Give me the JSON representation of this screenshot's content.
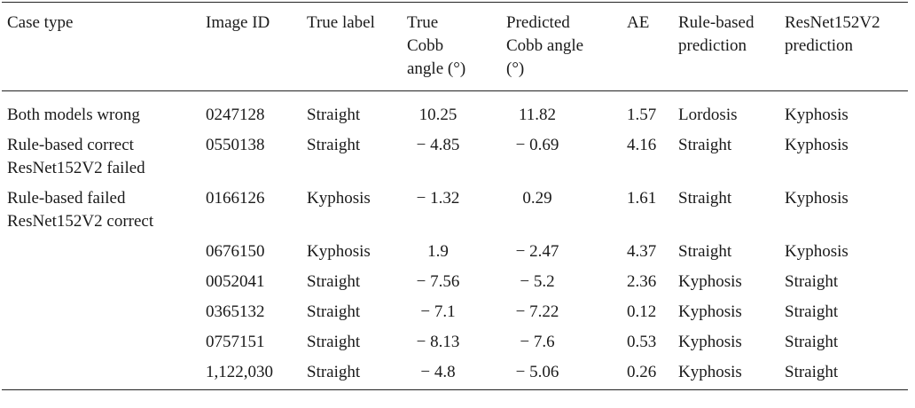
{
  "table": {
    "headers": [
      "Case type",
      "Image ID",
      "True label",
      "True\nCobb\nangle (°)",
      "Predicted\nCobb angle\n(°)",
      "AE",
      "Rule-based\nprediction",
      "ResNet152V2\nprediction"
    ],
    "rows": [
      {
        "case_type": "Both models wrong",
        "image_id": "0247128",
        "true_label": "Straight",
        "true_cobb": "10.25",
        "pred_cobb": "11.82",
        "ae": "1.57",
        "rule_pred": "Lordosis",
        "resnet_pred": "Kyphosis"
      },
      {
        "case_type": "Rule-based correct\nResNet152V2 failed",
        "image_id": "0550138",
        "true_label": "Straight",
        "true_cobb": "− 4.85",
        "pred_cobb": "− 0.69",
        "ae": "4.16",
        "rule_pred": "Straight",
        "resnet_pred": "Kyphosis"
      },
      {
        "case_type": "Rule-based failed\nResNet152V2 correct",
        "image_id": "0166126",
        "true_label": "Kyphosis",
        "true_cobb": "− 1.32",
        "pred_cobb": "0.29",
        "ae": "1.61",
        "rule_pred": "Straight",
        "resnet_pred": "Kyphosis"
      },
      {
        "case_type": "",
        "image_id": "0676150",
        "true_label": "Kyphosis",
        "true_cobb": "1.9",
        "pred_cobb": "− 2.47",
        "ae": "4.37",
        "rule_pred": "Straight",
        "resnet_pred": "Kyphosis"
      },
      {
        "case_type": "",
        "image_id": "0052041",
        "true_label": "Straight",
        "true_cobb": "− 7.56",
        "pred_cobb": "− 5.2",
        "ae": "2.36",
        "rule_pred": "Kyphosis",
        "resnet_pred": "Straight"
      },
      {
        "case_type": "",
        "image_id": "0365132",
        "true_label": "Straight",
        "true_cobb": "− 7.1",
        "pred_cobb": "− 7.22",
        "ae": "0.12",
        "rule_pred": "Kyphosis",
        "resnet_pred": "Straight"
      },
      {
        "case_type": "",
        "image_id": "0757151",
        "true_label": "Straight",
        "true_cobb": "− 8.13",
        "pred_cobb": "− 7.6",
        "ae": "0.53",
        "rule_pred": "Kyphosis",
        "resnet_pred": "Straight"
      },
      {
        "case_type": "",
        "image_id": "1,122,030",
        "true_label": "Straight",
        "true_cobb": "− 4.8",
        "pred_cobb": "− 5.06",
        "ae": "0.26",
        "rule_pred": "Kyphosis",
        "resnet_pred": "Straight"
      }
    ]
  }
}
